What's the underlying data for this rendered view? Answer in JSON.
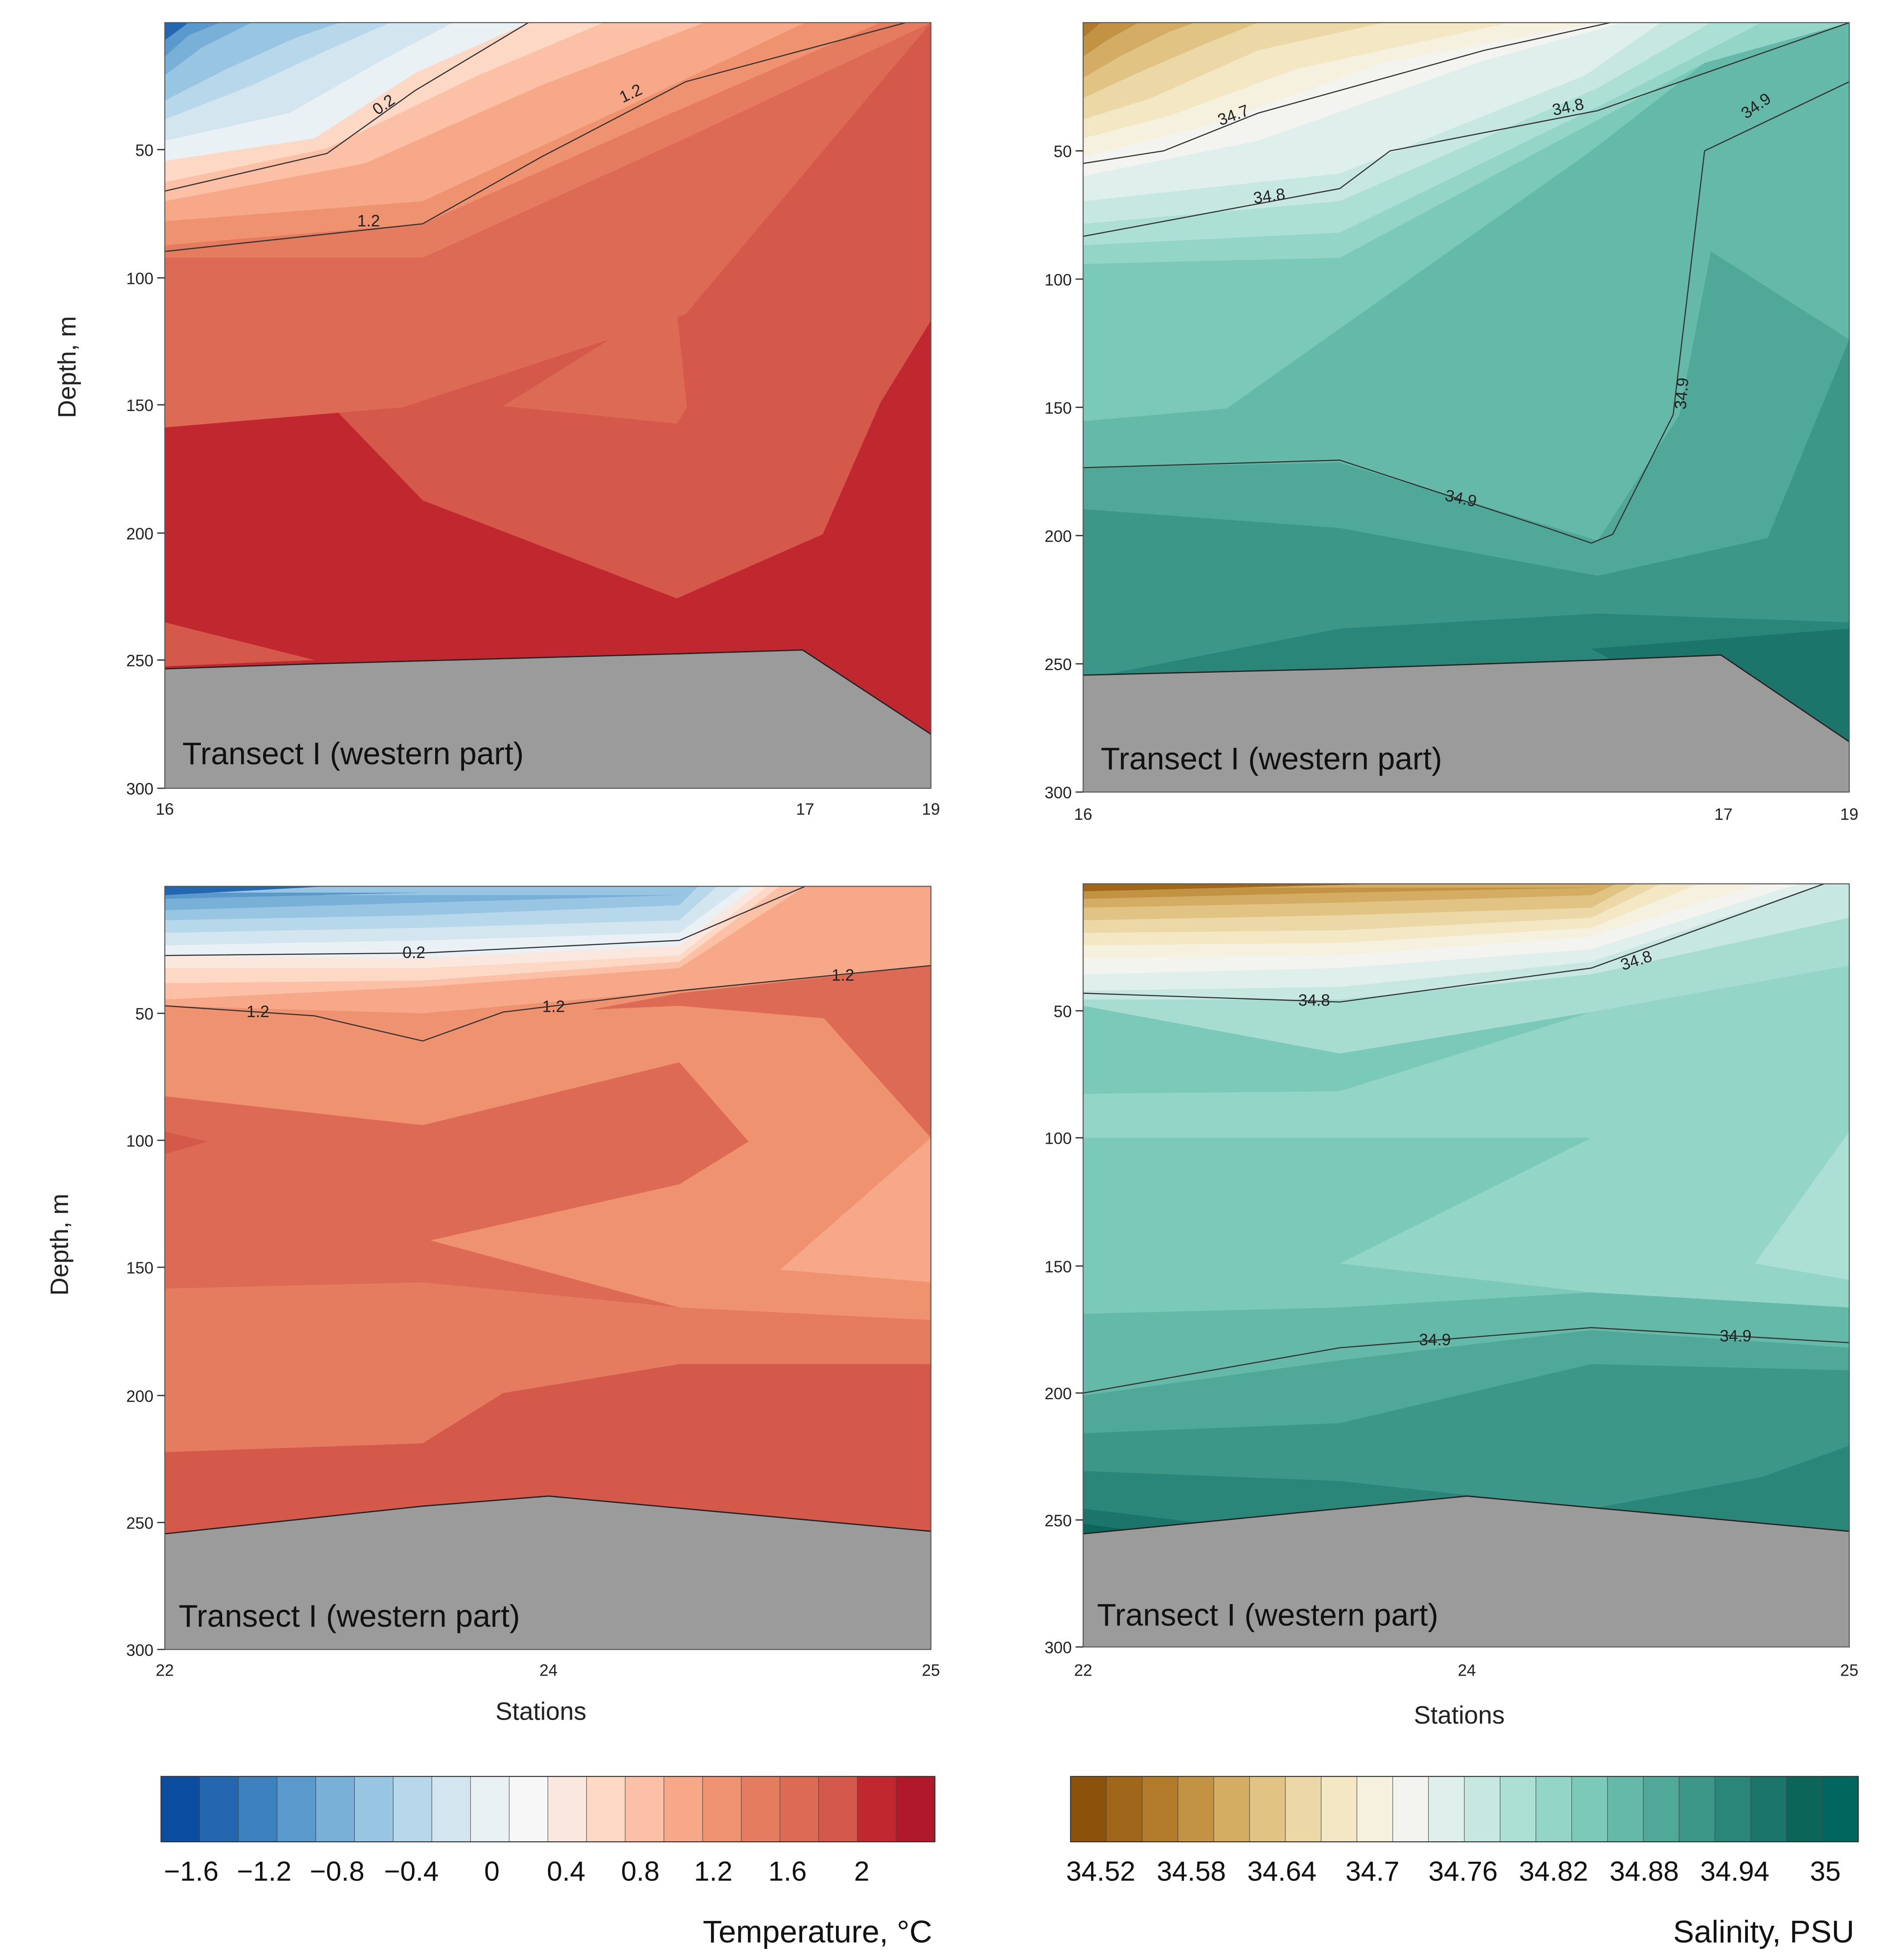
{
  "figure": {
    "panel_title": "Transect I (western part)",
    "ylabel": "Depth, m",
    "xlabel": "Stations",
    "temp_legend_label": "Temperature, °C",
    "sal_legend_label": "Salinity, PSU",
    "temp_colorbar_ticks": [
      "−1.6",
      "−1.2",
      "−0.8",
      "−0.4",
      "0",
      "0.4",
      "0.8",
      "1.2",
      "1.6",
      "2"
    ],
    "sal_colorbar_ticks": [
      "34.52",
      "34.58",
      "34.64",
      "34.7",
      "34.76",
      "34.82",
      "34.88",
      "34.94",
      "35"
    ],
    "colors": {
      "temp_scale": [
        "#0b4d9e",
        "#2467b0",
        "#3c80be",
        "#5a99cb",
        "#79b0d8",
        "#98c5e2",
        "#b7d7ea",
        "#d3e6f0",
        "#e9f1f4",
        "#f7f7f7",
        "#fae8df",
        "#fdd8c5",
        "#fbc0a5",
        "#f7a888",
        "#ef926f",
        "#e67c5f",
        "#dd6a55",
        "#d4594a",
        "#c0272f",
        "#b2182b"
      ],
      "sal_scale": [
        "#8c520b",
        "#a0661a",
        "#b27b2c",
        "#c39344",
        "#d4ac63",
        "#e1c384",
        "#ecd7a6",
        "#f3e7c4",
        "#f6f0de",
        "#f3f4f0",
        "#dff0ec",
        "#c7e8e1",
        "#ade0d5",
        "#93d6c8",
        "#7bc9b9",
        "#64b9a8",
        "#4fa898",
        "#3c9789",
        "#2b867a",
        "#1b756b",
        "#0c6559",
        "#01665e"
      ],
      "seabed": "#9b9b9b"
    }
  },
  "chart_data": [
    {
      "type": "contour",
      "variable": "Temperature",
      "units": "°C",
      "title": "Transect I (western part)",
      "xlabel": "",
      "ylabel": "Depth, m",
      "x_ticks": [
        "16",
        "17",
        "19"
      ],
      "y_ticks": [
        50,
        100,
        150,
        200,
        250,
        300
      ],
      "ylim": [
        0,
        300
      ],
      "contour_labels": [
        "0.2",
        "1.2",
        "1.2"
      ],
      "bottom_depth_m": [
        253,
        250,
        247,
        245,
        279
      ]
    },
    {
      "type": "contour",
      "variable": "Salinity",
      "units": "PSU",
      "title": "Transect I (western part)",
      "xlabel": "",
      "ylabel": "",
      "x_ticks": [
        "16",
        "17",
        "19"
      ],
      "y_ticks": [
        50,
        100,
        150,
        200,
        250,
        300
      ],
      "ylim": [
        0,
        300
      ],
      "contour_labels": [
        "34.7",
        "34.8",
        "34.8",
        "34.9",
        "34.9",
        "34.9"
      ],
      "bottom_depth_m": [
        253,
        250,
        247,
        245,
        279
      ]
    },
    {
      "type": "contour",
      "variable": "Temperature",
      "units": "°C",
      "title": "Transect I (western part)",
      "xlabel": "Stations",
      "ylabel": "Depth, m",
      "x_ticks": [
        "22",
        "24",
        "25"
      ],
      "y_ticks": [
        50,
        100,
        150,
        200,
        250,
        300
      ],
      "ylim": [
        0,
        300
      ],
      "contour_labels": [
        "0.2",
        "1.2",
        "1.2",
        "1.2"
      ],
      "bottom_depth_m": [
        255,
        241,
        254
      ]
    },
    {
      "type": "contour",
      "variable": "Salinity",
      "units": "PSU",
      "title": "Transect I (western part)",
      "xlabel": "Stations",
      "ylabel": "",
      "x_ticks": [
        "22",
        "24",
        "25"
      ],
      "y_ticks": [
        50,
        100,
        150,
        200,
        250,
        300
      ],
      "ylim": [
        0,
        300
      ],
      "contour_labels": [
        "34.8",
        "34.8",
        "34.9",
        "34.9"
      ],
      "bottom_depth_m": [
        255,
        241,
        254
      ]
    }
  ]
}
